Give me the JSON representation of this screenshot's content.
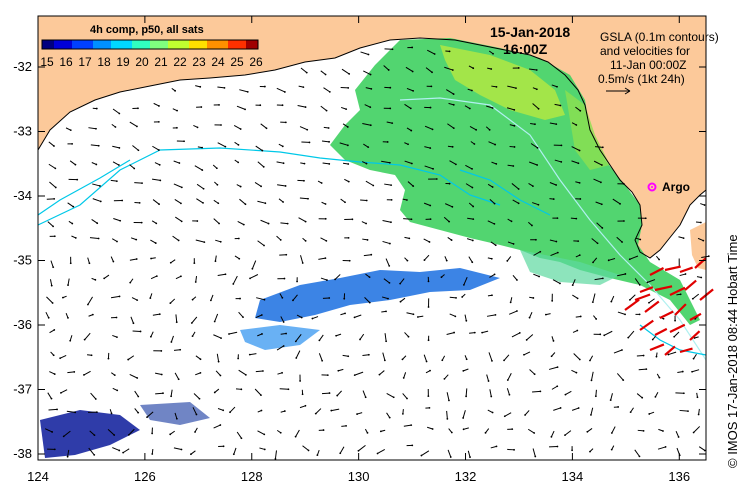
{
  "legend": {
    "title": "4h comp, p50, all sats",
    "scale_labels": [
      "15",
      "16",
      "17",
      "18",
      "19",
      "20",
      "21",
      "22",
      "23",
      "24",
      "25",
      "26"
    ],
    "colors": [
      "#00007f",
      "#0000d8",
      "#0040ff",
      "#0090ff",
      "#00d8ff",
      "#30ffc0",
      "#7fff7f",
      "#c0ff30",
      "#ffe000",
      "#ff9000",
      "#ff3000",
      "#a00000"
    ]
  },
  "datetime": {
    "date": "15-Jan-2018",
    "time": "16:00Z"
  },
  "gsla_note": {
    "lines": [
      "GSLA (0.1m contours)",
      "and velocities for",
      "11-Jan 00:00Z",
      "0.5m/s (1kt 24h)"
    ]
  },
  "argo": {
    "label": "Argo",
    "color": "#ff00ff"
  },
  "side_caption": "© IMOS 17-Jan-2018 08:44 Hobart Time",
  "axes": {
    "x_ticks": [
      "124",
      "126",
      "128",
      "130",
      "132",
      "134",
      "136"
    ],
    "y_ticks": [
      "-32",
      "-33",
      "-34",
      "-35",
      "-36",
      "-37",
      "-38"
    ]
  },
  "colors": {
    "land": "#fcc99a",
    "ocean": "#ffffff",
    "contour": "#00c8e8",
    "arrow": "#000000",
    "argo_arrow": "#e00000"
  }
}
